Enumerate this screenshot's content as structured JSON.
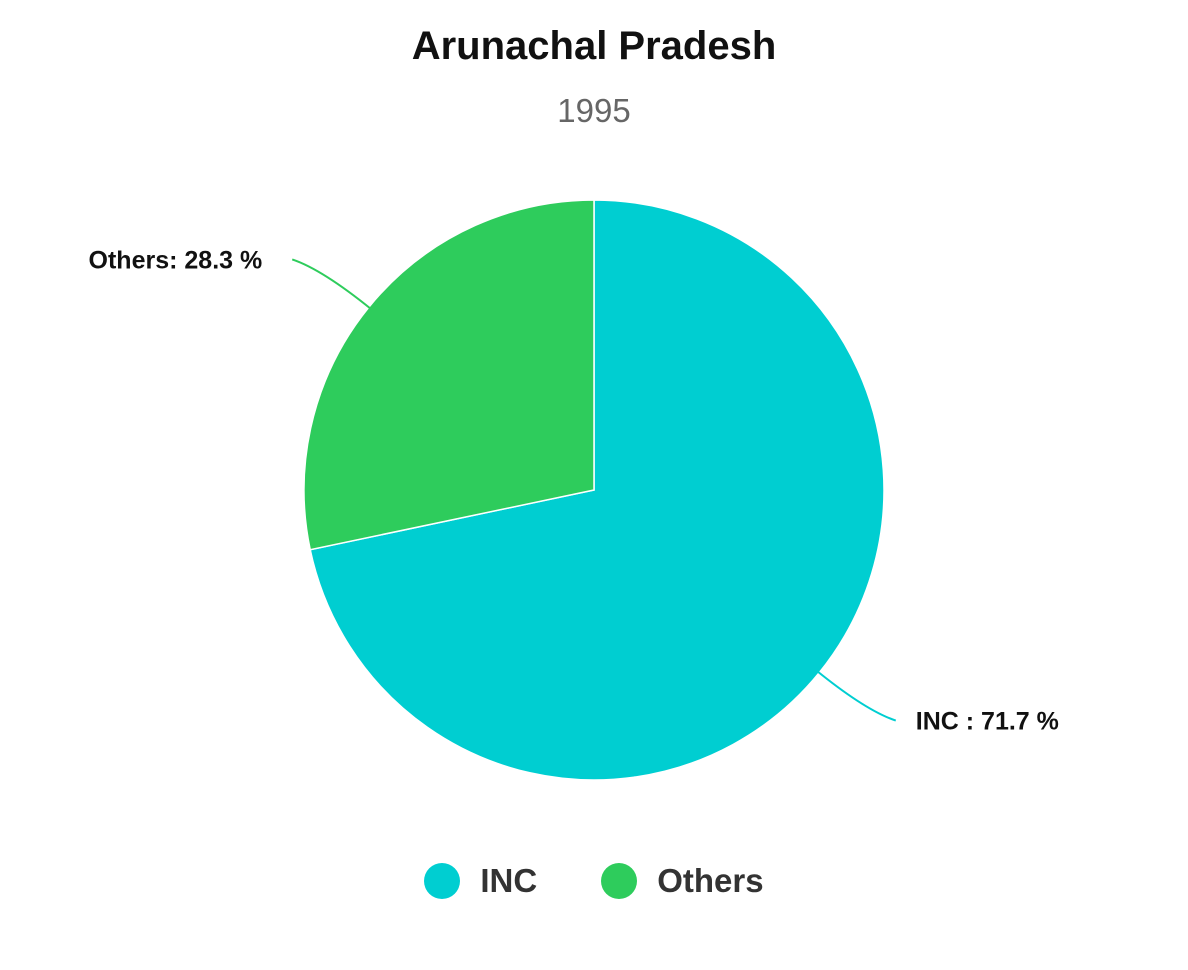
{
  "chart_data": {
    "type": "pie",
    "title": "Arunachal Pradesh",
    "subtitle": "1995",
    "slices": [
      {
        "name": "INC",
        "value": 71.7,
        "label": "INC : 71.7 %",
        "color": "#00CED1"
      },
      {
        "name": "Others",
        "value": 28.3,
        "label": "Others: 28.3 %",
        "color": "#2ECC5C"
      }
    ],
    "legend": {
      "position": "bottom",
      "entries": [
        "INC",
        "Others"
      ]
    }
  }
}
